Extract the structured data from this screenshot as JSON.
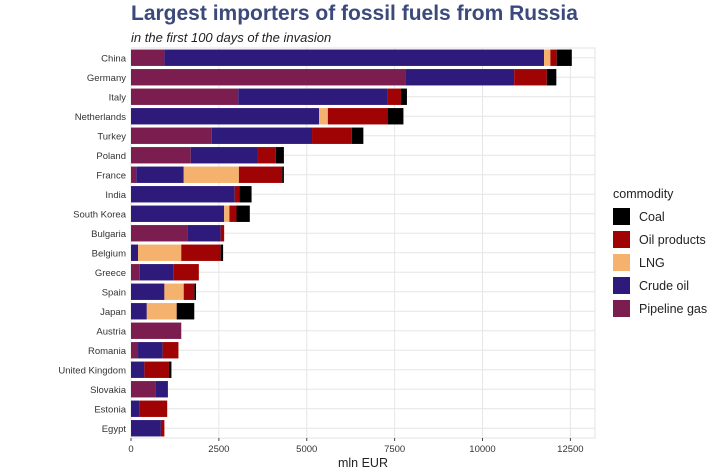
{
  "chart_data": {
    "type": "bar",
    "orientation": "horizontal",
    "stacked": true,
    "title": "Largest importers of fossil fuels from Russia",
    "subtitle": "in the first 100 days of the invasion",
    "xlabel": "mln EUR",
    "xlim": [
      0,
      13200
    ],
    "xticks": [
      "0",
      "2500",
      "5000",
      "7500",
      "10000",
      "12500"
    ],
    "xtick_values": [
      0,
      2500,
      5000,
      7500,
      10000,
      12500
    ],
    "grid": true,
    "legend": {
      "title": "commodity",
      "placement": "right"
    },
    "categories": [
      "China",
      "Germany",
      "Italy",
      "Netherlands",
      "Turkey",
      "Poland",
      "France",
      "India",
      "South Korea",
      "Bulgaria",
      "Belgium",
      "Greece",
      "Spain",
      "Japan",
      "Austria",
      "Romania",
      "United Kingdom",
      "Slovakia",
      "Estonia",
      "Egypt"
    ],
    "series": [
      {
        "name": "Pipeline gas",
        "color": "#7b1e4f",
        "values": [
          950,
          7800,
          3050,
          0,
          2300,
          1700,
          150,
          0,
          0,
          1600,
          0,
          250,
          0,
          0,
          1430,
          200,
          0,
          700,
          0,
          0
        ]
      },
      {
        "name": "Crude oil",
        "color": "#2e1a7a",
        "values": [
          10800,
          3100,
          4250,
          5350,
          2850,
          1900,
          1350,
          2950,
          2650,
          950,
          200,
          950,
          950,
          450,
          0,
          700,
          380,
          350,
          250,
          850
        ]
      },
      {
        "name": "LNG",
        "color": "#f5b26e",
        "values": [
          180,
          0,
          0,
          250,
          0,
          0,
          1570,
          0,
          150,
          0,
          1230,
          0,
          550,
          850,
          0,
          0,
          0,
          0,
          0,
          0
        ]
      },
      {
        "name": "Oil products",
        "color": "#a00303",
        "values": [
          180,
          930,
          380,
          1700,
          1130,
          520,
          1230,
          130,
          200,
          100,
          1120,
          730,
          300,
          0,
          0,
          450,
          700,
          0,
          780,
          100
        ]
      },
      {
        "name": "Coal",
        "color": "#000000",
        "values": [
          430,
          270,
          170,
          450,
          330,
          230,
          50,
          350,
          380,
          0,
          70,
          0,
          50,
          500,
          0,
          0,
          70,
          0,
          0,
          0
        ]
      }
    ],
    "legend_order": [
      "Coal",
      "Oil products",
      "LNG",
      "Crude oil",
      "Pipeline gas"
    ]
  }
}
